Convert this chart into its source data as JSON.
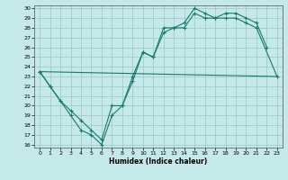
{
  "title": "",
  "xlabel": "Humidex (Indice chaleur)",
  "ylabel": "",
  "bg_color": "#c5e8e8",
  "grid_color": "#a0cccc",
  "line_color": "#1a7a6a",
  "xlim": [
    -0.5,
    23.5
  ],
  "ylim": [
    15.7,
    30.3
  ],
  "xticks": [
    0,
    1,
    2,
    3,
    4,
    5,
    6,
    7,
    8,
    9,
    10,
    11,
    12,
    13,
    14,
    15,
    16,
    17,
    18,
    19,
    20,
    21,
    22,
    23
  ],
  "yticks": [
    16,
    17,
    18,
    19,
    20,
    21,
    22,
    23,
    24,
    25,
    26,
    27,
    28,
    29,
    30
  ],
  "line1_x": [
    0,
    1,
    2,
    3,
    4,
    5,
    6,
    7,
    8,
    9,
    10,
    11,
    12,
    13,
    14,
    15,
    16,
    17,
    18,
    19,
    20,
    21,
    22
  ],
  "line1_y": [
    23.5,
    22.0,
    20.5,
    19.0,
    17.5,
    17.0,
    16.0,
    19.0,
    20.0,
    22.5,
    25.5,
    25.0,
    28.0,
    28.0,
    28.5,
    30.0,
    29.5,
    29.0,
    29.5,
    29.5,
    29.0,
    28.5,
    26.0
  ],
  "line2_x": [
    0,
    1,
    2,
    3,
    4,
    5,
    6,
    7,
    8,
    9,
    10,
    11,
    12,
    13,
    14,
    15,
    16,
    17,
    18,
    19,
    20,
    21,
    23
  ],
  "line2_y": [
    23.5,
    22.0,
    20.5,
    19.5,
    18.5,
    17.5,
    16.5,
    20.0,
    20.0,
    23.0,
    25.5,
    25.0,
    27.5,
    28.0,
    28.0,
    29.5,
    29.0,
    29.0,
    29.0,
    29.0,
    28.5,
    28.0,
    23.0
  ],
  "line3_x": [
    0,
    23
  ],
  "line3_y": [
    23.5,
    23.0
  ]
}
